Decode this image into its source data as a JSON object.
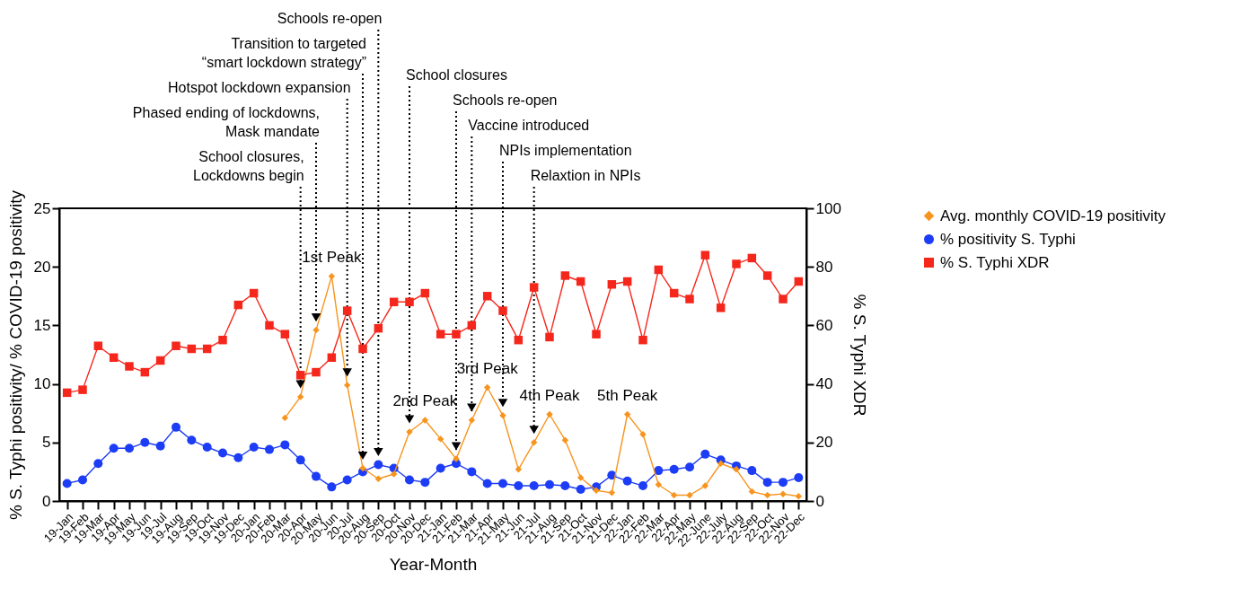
{
  "chart_data": {
    "type": "line",
    "xlabel": "Year-Month",
    "ylabel": "% S. Typhi positivity/ % COVID-19 positivity",
    "y2label": "% S. Typhi XDR",
    "categories": [
      "19-Jan",
      "19-Feb",
      "19-Mar",
      "19-Apr",
      "19-May",
      "19-Jun",
      "19-Jul",
      "19-Aug",
      "19-Sep",
      "19-Oct",
      "19-Nov",
      "19-Dec",
      "20-Jan",
      "20-Feb",
      "20-Mar",
      "20-Apr",
      "20-May",
      "20-Jun",
      "20-Jul",
      "20-Aug",
      "20-Sep",
      "20-Oct",
      "20-Nov",
      "20-Dec",
      "21-Jan",
      "21-Feb",
      "21-Mar",
      "21-Apr",
      "21-May",
      "21-Jun",
      "21-Jul",
      "21-Aug",
      "21-Sep",
      "21-Oct",
      "21-Nov",
      "21-Dec",
      "22-Jan",
      "22-Feb",
      "22-Mar",
      "22-Apr",
      "22-May",
      "22-June",
      "22-July",
      "22-Aug",
      "22-Sep",
      "22-Oct",
      "22-Nov",
      "22-Dec"
    ],
    "series": [
      {
        "name": "Avg. monthly COVID-19 positivity",
        "color": "#f7941d",
        "marker": "diamond",
        "values": [
          null,
          null,
          null,
          null,
          null,
          null,
          null,
          null,
          null,
          null,
          null,
          null,
          null,
          null,
          7.1,
          8.9,
          14.6,
          19.2,
          9.9,
          2.8,
          1.9,
          2.3,
          5.9,
          6.9,
          5.3,
          3.6,
          6.9,
          9.7,
          7.3,
          2.7,
          5.0,
          7.4,
          5.2,
          2.0,
          0.9,
          0.7,
          7.4,
          5.7,
          1.4,
          0.5,
          0.5,
          1.3,
          3.2,
          2.7,
          0.8,
          0.5,
          0.6,
          0.4
        ]
      },
      {
        "name": "% positivity S. Typhi",
        "color": "#1c3cf5",
        "marker": "circle",
        "values": [
          1.5,
          1.8,
          3.2,
          4.5,
          4.5,
          5.0,
          4.7,
          6.3,
          5.2,
          4.6,
          4.1,
          3.7,
          4.6,
          4.4,
          4.8,
          3.5,
          2.1,
          1.2,
          1.8,
          2.5,
          3.1,
          2.8,
          1.8,
          1.6,
          2.8,
          3.2,
          2.5,
          1.5,
          1.5,
          1.3,
          1.3,
          1.4,
          1.3,
          1.0,
          1.2,
          2.2,
          1.7,
          1.3,
          2.6,
          2.7,
          2.9,
          4.0,
          3.5,
          3.0,
          2.6,
          1.6,
          1.6,
          2.0
        ]
      },
      {
        "name": "% S. Typhi XDR",
        "color": "#f5271c",
        "marker": "square",
        "axis": "y2",
        "values": [
          37,
          38,
          53,
          49,
          46,
          44,
          48,
          53,
          52,
          52,
          55,
          67,
          71,
          60,
          57,
          43,
          44,
          49,
          65,
          52,
          59,
          68,
          68,
          71,
          57,
          57,
          60,
          70,
          65,
          55,
          73,
          56,
          77,
          75,
          57,
          74,
          75,
          55,
          79,
          71,
          69,
          84,
          66,
          81,
          83,
          77,
          69,
          75
        ]
      }
    ],
    "ylim": [
      0,
      25
    ],
    "yticks": [
      0,
      5,
      10,
      15,
      20,
      25
    ],
    "y2lim": [
      0,
      100
    ],
    "y2ticks": [
      0,
      20,
      40,
      60,
      80,
      100
    ],
    "legend": "top right",
    "ref_lines": [
      {
        "axis": "x",
        "value": "20-Apr",
        "label": "School closures,\nLockdowns begin",
        "line_style": "dotted"
      },
      {
        "axis": "x",
        "value": "20-May",
        "label": "Phased ending of lockdowns,\nMask mandate",
        "line_style": "dotted"
      },
      {
        "axis": "x",
        "value": "20-Jul",
        "label": "Hotspot lockdown expansion",
        "line_style": "dotted"
      },
      {
        "axis": "x",
        "value": "20-Aug",
        "label": "Transition to targeted\n“smart lockdown strategy”",
        "line_style": "dotted"
      },
      {
        "axis": "x",
        "value": "20-Sep",
        "label": "Schools re-open",
        "line_style": "dotted"
      },
      {
        "axis": "x",
        "value": "20-Nov",
        "label": "School closures",
        "line_style": "dotted"
      },
      {
        "axis": "x",
        "value": "21-Feb",
        "label": "Schools re-open",
        "line_style": "dotted"
      },
      {
        "axis": "x",
        "value": "21-Mar",
        "label": "Vaccine introduced",
        "line_style": "dotted"
      },
      {
        "axis": "x",
        "value": "21-May",
        "label": "NPIs implementation",
        "line_style": "dotted"
      },
      {
        "axis": "x",
        "value": "21-Jul",
        "label": "Relaxtion in NPIs",
        "line_style": "dotted"
      }
    ],
    "annotations": [
      {
        "text": "1st Peak",
        "x": "20-Jun",
        "y": 19.2
      },
      {
        "text": "2nd Peak",
        "x": "20-Dec",
        "y": 6.9
      },
      {
        "text": "3rd Peak",
        "x": "21-Apr",
        "y": 9.7
      },
      {
        "text": "4th Peak",
        "x": "21-Aug",
        "y": 7.4
      },
      {
        "text": "5th Peak",
        "x": "22-Jan",
        "y": 7.4
      }
    ]
  }
}
